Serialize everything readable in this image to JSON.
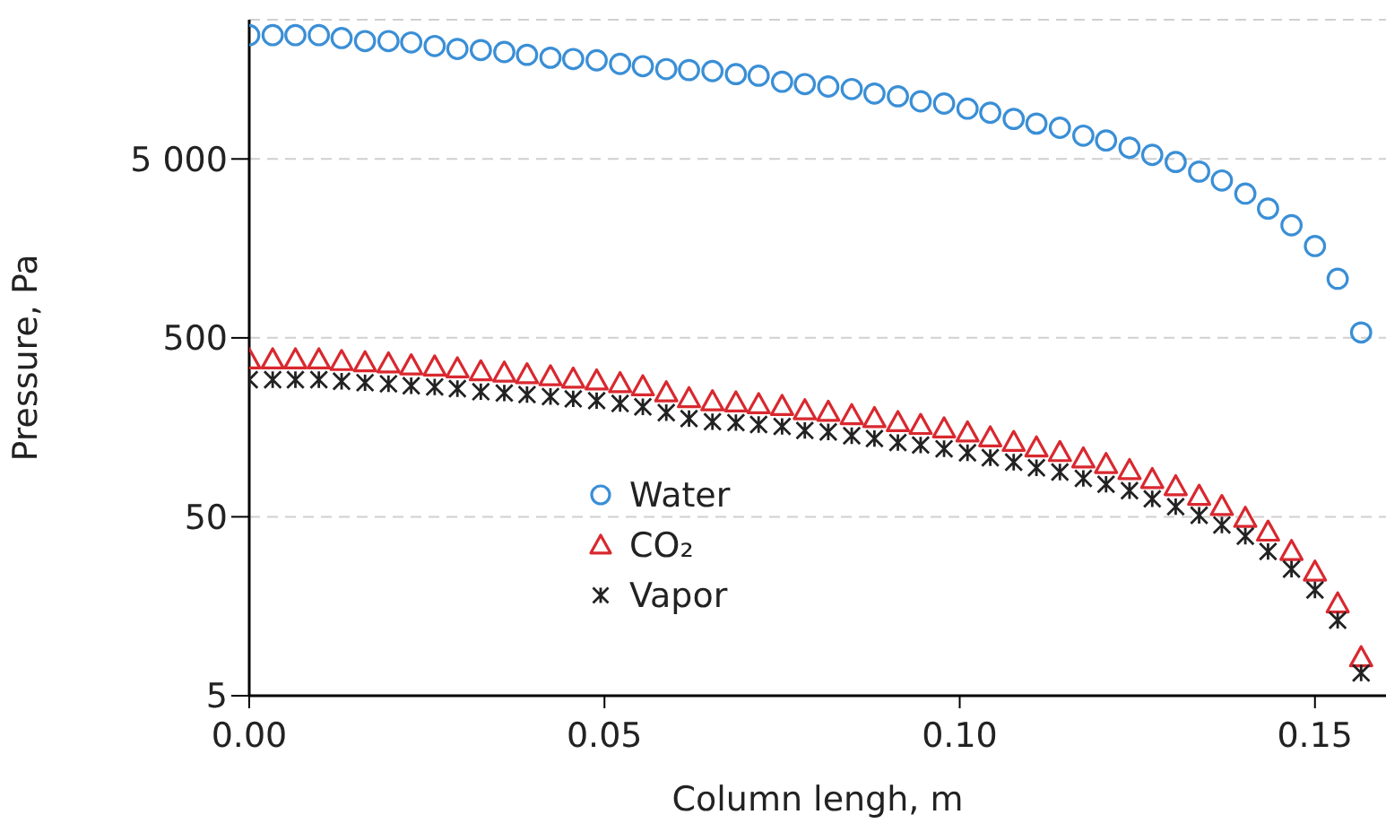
{
  "chart_data": {
    "type": "scatter",
    "xlabel": "Column lengh, m",
    "ylabel": "Pressure, Pa",
    "log": "y",
    "x": [
      0,
      0.0033,
      0.0065,
      0.0098,
      0.013,
      0.0163,
      0.0196,
      0.0228,
      0.0261,
      0.0293,
      0.0326,
      0.0359,
      0.0391,
      0.0424,
      0.0456,
      0.0489,
      0.0522,
      0.0554,
      0.0587,
      0.0619,
      0.0652,
      0.0685,
      0.0717,
      0.075,
      0.0782,
      0.0815,
      0.0848,
      0.088,
      0.0913,
      0.0945,
      0.0978,
      0.1011,
      0.1043,
      0.1076,
      0.1108,
      0.1141,
      0.1174,
      0.1206,
      0.1239,
      0.1271,
      0.1304,
      0.1337,
      0.1369,
      0.1402,
      0.1434,
      0.1467,
      0.15,
      0.1532,
      0.1565
    ],
    "series": [
      {
        "name": "Water",
        "color": "#3a8fd6",
        "marker": "circle",
        "values": [
          24600,
          24600,
          24600,
          24600,
          23700,
          22800,
          22800,
          22400,
          21400,
          20600,
          20300,
          19800,
          19100,
          18400,
          18100,
          17800,
          17000,
          16500,
          15900,
          15700,
          15500,
          14900,
          14600,
          13500,
          13100,
          12700,
          12300,
          11600,
          11200,
          10500,
          10200,
          9550,
          9060,
          8370,
          7880,
          7470,
          6750,
          6340,
          5780,
          5270,
          4810,
          4250,
          3790,
          3200,
          2640,
          2130,
          1630,
          1070,
          536
        ]
      },
      {
        "name": "CO₂",
        "color": "#d9282f",
        "marker": "triangle",
        "values": [
          379,
          379,
          379,
          379,
          371,
          365,
          360,
          351,
          346,
          338,
          325,
          320,
          313,
          305,
          296,
          289,
          279,
          268,
          248,
          230,
          221,
          218,
          213,
          208,
          197,
          193,
          185,
          178,
          169,
          163,
          156,
          148,
          139,
          131,
          122,
          115,
          106,
          98.6,
          91.2,
          81.3,
          74.1,
          65.5,
          57.4,
          49.3,
          41.3,
          32.2,
          24.7,
          16.4,
          8.2
        ]
      },
      {
        "name": "Vapor",
        "color": "#222222",
        "marker": "cross",
        "values": [
          292,
          292,
          292,
          292,
          286,
          281,
          277,
          270,
          266,
          260,
          250,
          246,
          241,
          235,
          228,
          223,
          215,
          206,
          191,
          177,
          170,
          168,
          164,
          160,
          152,
          149,
          142,
          137,
          130,
          126,
          120,
          114,
          107,
          101,
          94,
          89,
          82,
          76,
          70,
          63,
          57,
          51,
          45,
          39,
          32,
          25.5,
          19.5,
          13.2,
          6.7
        ]
      }
    ],
    "xlim": [
      0,
      0.16
    ],
    "xticks": [
      {
        "value": 0,
        "label": "0.00"
      },
      {
        "value": 0.05,
        "label": "0.05"
      },
      {
        "value": 0.1,
        "label": "0.10"
      },
      {
        "value": 0.15,
        "label": "0.15"
      }
    ],
    "ylim": [
      5,
      30000
    ],
    "yticks": [
      5,
      50,
      500,
      {
        "value": 5000,
        "label": "5 000"
      }
    ],
    "grid": "y",
    "legend": "bottom left"
  }
}
